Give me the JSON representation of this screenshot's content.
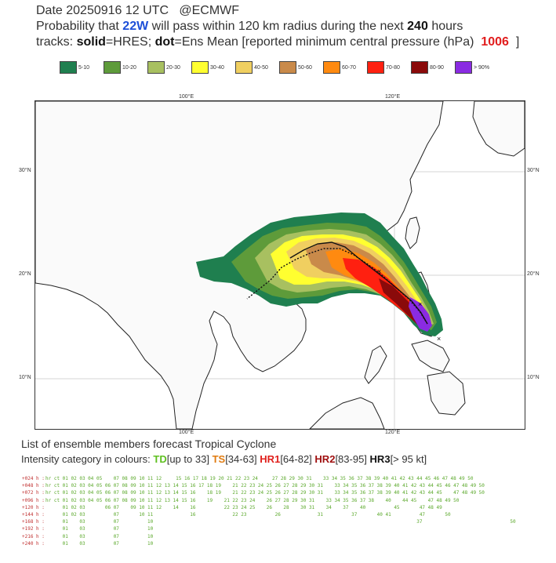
{
  "header": {
    "line1_prefix": "Date 20250916 12 UTC",
    "line1_brand": "@ECMWF",
    "line2_a": "Probability that",
    "storm_id": "22W",
    "line2_b": "will pass within 120 km radius during the next",
    "hours": "240",
    "line2_c": "hours",
    "line3_a": "tracks:",
    "solid_label": "solid",
    "line3_b": "=HRES;",
    "dot_label": "dot",
    "line3_c": "=Ens Mean [reported minimum central pressure (hPa)",
    "pressure": "1006",
    "line3_d": "]"
  },
  "legend": [
    {
      "label": "5-10",
      "color": "#1f7f4f"
    },
    {
      "label": "10-20",
      "color": "#5e9b3a"
    },
    {
      "label": "20-30",
      "color": "#a8c060"
    },
    {
      "label": "30-40",
      "color": "#ffff30"
    },
    {
      "label": "40-50",
      "color": "#f0cf60"
    },
    {
      "label": "50-60",
      "color": "#c98a4a"
    },
    {
      "label": "60-70",
      "color": "#ff8a10"
    },
    {
      "label": "70-80",
      "color": "#ff2010"
    },
    {
      "label": "80-90",
      "color": "#8a0a0a"
    },
    {
      "label": "> 90%",
      "color": "#8a2be2"
    }
  ],
  "map": {
    "lon_ticks": [
      "100°E",
      "120°E"
    ],
    "lat_ticks": [
      "30°N",
      "20°N",
      "10°N"
    ]
  },
  "footer": {
    "title": "List of ensemble members forecast Tropical Cyclone",
    "intensity_prefix": "Intensity category in colours:",
    "td": "TD",
    "td_range": "[up to 33]",
    "ts": "TS",
    "ts_range": "[34-63]",
    "hr1": "HR1",
    "hr1_range": "[64-82]",
    "hr2": "HR2",
    "hr2_range": "[83-95]",
    "hr3": "HR3",
    "hr3_range": "[> 95 kt]"
  },
  "members_table": [
    {
      "lead": "+024 h :",
      "members": "hr ct 01 02 03 04 05    07 08 09 10 11 12     15 16 17 18 19 20 21 22 23 24     27 28 29 30 31    33 34 35 36 37 38 39 40 41 42 43 44 45 46 47 48 49 50"
    },
    {
      "lead": "+048 h :",
      "members": "hr ct 01 02 03 04 05 06 07 08 09 10 11 12 13 14 15 16 17 18 19    21 22 23 24 25 26 27 28 29 30 31    33 34 35 36 37 38 39 40 41 42 43 44 45 46 47 48 49 50"
    },
    {
      "lead": "+072 h :",
      "members": "hr ct 01 02 03 04 05 06 07 08 09 10 11 12 13 14 15 16    18 19    21 22 23 24 25 26 27 28 29 30 31    33 34 35 36 37 38 39 40 41 42 43 44 45    47 48 49 50"
    },
    {
      "lead": "+096 h :",
      "members": "hr ct 01 02 03 04 05 06 07 08 09 10 11 12 13 14 15 16    19    21 22 23 24    26 27 28 29 30 31    33 34 35 36 37 38    40    44 45    47 48 49 50"
    },
    {
      "lead": "+120 h :",
      "members": "      01 02 03       06 07    09 10 11 12    14    16          22 23 24 25    26    28    30 31    34    37    40          45       47 48 49"
    },
    {
      "lead": "+144 h :",
      "members": "      01 02 03          07       10 11             16             22 23          26             31          37       40 41          47       50"
    },
    {
      "lead": "+168 h :",
      "members": "      01    03          07          10                                                                                             37                               50"
    },
    {
      "lead": "+192 h :",
      "members": "      01    03          07          10"
    },
    {
      "lead": "+216 h :",
      "members": "      01    03          07          10"
    },
    {
      "lead": "+240 h :",
      "members": "      01    03          07          10"
    }
  ]
}
